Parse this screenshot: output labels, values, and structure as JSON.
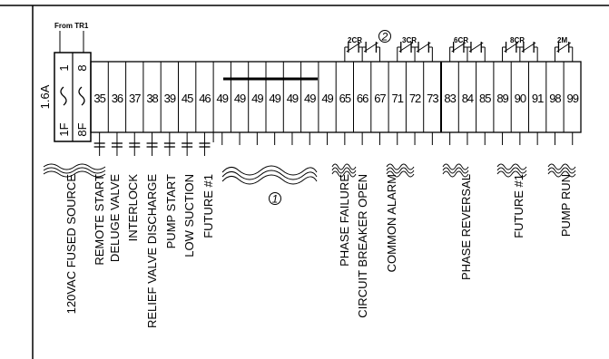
{
  "header": {
    "from_label": "From TR1"
  },
  "fuse": {
    "rating": "1.6A",
    "top_left": "1",
    "top_right": "8",
    "bottom_left": "1F",
    "bottom_right": "8F"
  },
  "terminals": [
    "35",
    "36",
    "37",
    "38",
    "39",
    "45",
    "46",
    "49",
    "49",
    "49",
    "49",
    "49",
    "49",
    "49",
    "65",
    "66",
    "67",
    "71",
    "72",
    "73",
    "83",
    "84",
    "85",
    "89",
    "90",
    "91",
    "98",
    "99"
  ],
  "relay_labels": [
    "2CR",
    "3CR",
    "6CR",
    "8CR",
    "2M"
  ],
  "callouts": [
    "2",
    "1"
  ],
  "input_labels": [
    "REMOTE START",
    "DELUGE VALVE",
    "INTERLOCK",
    "RELIEF VALVE DISCHARGE",
    "PUMP START",
    "LOW SUCTION",
    "FUTURE #1"
  ],
  "source_label": [
    "120VAC FUSED SOURCE"
  ],
  "output_labels": [
    [
      "PHASE FAILURE",
      "CIRCUIT BREAKER OPEN"
    ],
    [
      "COMMON ALARM"
    ],
    [
      "PHASE REVERSAL"
    ],
    [
      "FUTURE #1"
    ],
    [
      "PUMP RUN"
    ]
  ]
}
